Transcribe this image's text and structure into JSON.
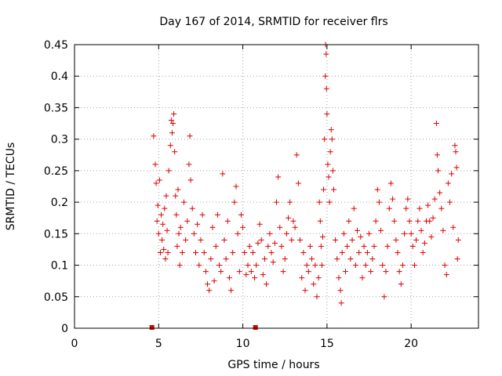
{
  "chart_data": {
    "type": "scatter",
    "title": "Day 167 of 2014, SRMTID for receiver flrs",
    "xlabel": "GPS time / hours",
    "ylabel": "SRMTID / TECUs",
    "xlim": [
      0,
      24
    ],
    "ylim": [
      0,
      0.45
    ],
    "xticks": [
      0,
      5,
      10,
      15,
      20
    ],
    "yticks": [
      0,
      0.05,
      0.1,
      0.15,
      0.2,
      0.25,
      0.3,
      0.35,
      0.4,
      0.45
    ],
    "xtick_labels": [
      "0",
      "5",
      "10",
      "15",
      "20"
    ],
    "ytick_labels": [
      "0",
      "0.05",
      "0.1",
      "0.15",
      "0.2",
      "0.25",
      "0.3",
      "0.35",
      "0.4",
      "0.45"
    ],
    "grid": true,
    "marker": "+",
    "color": "#dd0000",
    "series": [
      {
        "name": "SRMTID",
        "points": [
          [
            4.7,
            0.305
          ],
          [
            4.8,
            0.26
          ],
          [
            4.85,
            0.23
          ],
          [
            4.9,
            0.17
          ],
          [
            4.95,
            0.195
          ],
          [
            5.0,
            0.15
          ],
          [
            5.05,
            0.235
          ],
          [
            5.1,
            0.12
          ],
          [
            5.15,
            0.18
          ],
          [
            5.2,
            0.14
          ],
          [
            5.25,
            0.165
          ],
          [
            5.3,
            0.125
          ],
          [
            5.35,
            0.19
          ],
          [
            5.4,
            0.11
          ],
          [
            5.45,
            0.21
          ],
          [
            5.5,
            0.155
          ],
          [
            5.55,
            0.12
          ],
          [
            5.6,
            0.25
          ],
          [
            5.7,
            0.29
          ],
          [
            5.75,
            0.33
          ],
          [
            5.8,
            0.31
          ],
          [
            5.85,
            0.325
          ],
          [
            5.9,
            0.34
          ],
          [
            5.95,
            0.28
          ],
          [
            6.0,
            0.21
          ],
          [
            6.05,
            0.18
          ],
          [
            6.1,
            0.13
          ],
          [
            6.15,
            0.22
          ],
          [
            6.2,
            0.15
          ],
          [
            6.25,
            0.1
          ],
          [
            6.3,
            0.16
          ],
          [
            6.4,
            0.12
          ],
          [
            6.5,
            0.2
          ],
          [
            6.6,
            0.14
          ],
          [
            6.7,
            0.17
          ],
          [
            6.8,
            0.26
          ],
          [
            6.85,
            0.305
          ],
          [
            6.9,
            0.235
          ],
          [
            7.0,
            0.19
          ],
          [
            7.1,
            0.15
          ],
          [
            7.2,
            0.12
          ],
          [
            7.3,
            0.165
          ],
          [
            7.4,
            0.1
          ],
          [
            7.5,
            0.14
          ],
          [
            7.6,
            0.18
          ],
          [
            7.7,
            0.12
          ],
          [
            7.8,
            0.09
          ],
          [
            7.9,
            0.07
          ],
          [
            8.0,
            0.06
          ],
          [
            8.1,
            0.11
          ],
          [
            8.2,
            0.16
          ],
          [
            8.3,
            0.075
          ],
          [
            8.4,
            0.13
          ],
          [
            8.5,
            0.18
          ],
          [
            8.6,
            0.1
          ],
          [
            8.7,
            0.09
          ],
          [
            8.8,
            0.245
          ],
          [
            8.9,
            0.14
          ],
          [
            9.0,
            0.11
          ],
          [
            9.1,
            0.17
          ],
          [
            9.2,
            0.08
          ],
          [
            9.3,
            0.06
          ],
          [
            9.4,
            0.12
          ],
          [
            9.5,
            0.2
          ],
          [
            9.6,
            0.225
          ],
          [
            9.7,
            0.15
          ],
          [
            9.8,
            0.09
          ],
          [
            9.9,
            0.18
          ],
          [
            10.0,
            0.16
          ],
          [
            10.1,
            0.12
          ],
          [
            10.2,
            0.085
          ],
          [
            10.3,
            0.1
          ],
          [
            10.4,
            0.13
          ],
          [
            10.5,
            0.09
          ],
          [
            10.6,
            0.12
          ],
          [
            10.7,
            0.08
          ],
          [
            10.8,
            0.1
          ],
          [
            10.9,
            0.135
          ],
          [
            11.0,
            0.165
          ],
          [
            11.1,
            0.14
          ],
          [
            11.2,
            0.085
          ],
          [
            11.3,
            0.11
          ],
          [
            11.4,
            0.07
          ],
          [
            11.5,
            0.13
          ],
          [
            11.6,
            0.15
          ],
          [
            11.7,
            0.12
          ],
          [
            11.8,
            0.105
          ],
          [
            11.9,
            0.135
          ],
          [
            12.0,
            0.2
          ],
          [
            12.1,
            0.24
          ],
          [
            12.2,
            0.16
          ],
          [
            12.3,
            0.13
          ],
          [
            12.4,
            0.09
          ],
          [
            12.5,
            0.11
          ],
          [
            12.6,
            0.15
          ],
          [
            12.7,
            0.175
          ],
          [
            12.8,
            0.2
          ],
          [
            12.9,
            0.14
          ],
          [
            13.0,
            0.17
          ],
          [
            13.1,
            0.16
          ],
          [
            13.2,
            0.275
          ],
          [
            13.3,
            0.23
          ],
          [
            13.4,
            0.14
          ],
          [
            13.5,
            0.08
          ],
          [
            13.6,
            0.12
          ],
          [
            13.7,
            0.06
          ],
          [
            13.8,
            0.1
          ],
          [
            13.9,
            0.09
          ],
          [
            14.0,
            0.13
          ],
          [
            14.1,
            0.11
          ],
          [
            14.2,
            0.07
          ],
          [
            14.3,
            0.1
          ],
          [
            14.4,
            0.05
          ],
          [
            14.5,
            0.08
          ],
          [
            14.55,
            0.2
          ],
          [
            14.6,
            0.17
          ],
          [
            14.65,
            0.13
          ],
          [
            14.7,
            0.1
          ],
          [
            14.75,
            0.145
          ],
          [
            14.8,
            0.22
          ],
          [
            14.85,
            0.3
          ],
          [
            14.9,
            0.4
          ],
          [
            14.92,
            0.45
          ],
          [
            14.95,
            0.435
          ],
          [
            14.97,
            0.38
          ],
          [
            15.0,
            0.34
          ],
          [
            15.05,
            0.26
          ],
          [
            15.1,
            0.24
          ],
          [
            15.15,
            0.2
          ],
          [
            15.2,
            0.28
          ],
          [
            15.25,
            0.315
          ],
          [
            15.3,
            0.3
          ],
          [
            15.35,
            0.25
          ],
          [
            15.4,
            0.22
          ],
          [
            15.5,
            0.14
          ],
          [
            15.6,
            0.11
          ],
          [
            15.7,
            0.08
          ],
          [
            15.8,
            0.06
          ],
          [
            15.85,
            0.04
          ],
          [
            15.9,
            0.12
          ],
          [
            16.0,
            0.15
          ],
          [
            16.1,
            0.09
          ],
          [
            16.2,
            0.13
          ],
          [
            16.3,
            0.17
          ],
          [
            16.4,
            0.11
          ],
          [
            16.5,
            0.14
          ],
          [
            16.6,
            0.19
          ],
          [
            16.7,
            0.1
          ],
          [
            16.8,
            0.155
          ],
          [
            16.9,
            0.12
          ],
          [
            17.0,
            0.145
          ],
          [
            17.1,
            0.08
          ],
          [
            17.2,
            0.13
          ],
          [
            17.3,
            0.1
          ],
          [
            17.4,
            0.12
          ],
          [
            17.5,
            0.15
          ],
          [
            17.6,
            0.09
          ],
          [
            17.7,
            0.11
          ],
          [
            17.8,
            0.13
          ],
          [
            17.9,
            0.17
          ],
          [
            18.0,
            0.22
          ],
          [
            18.1,
            0.2
          ],
          [
            18.2,
            0.155
          ],
          [
            18.3,
            0.1
          ],
          [
            18.4,
            0.05
          ],
          [
            18.5,
            0.09
          ],
          [
            18.6,
            0.13
          ],
          [
            18.7,
            0.19
          ],
          [
            18.8,
            0.23
          ],
          [
            18.9,
            0.205
          ],
          [
            19.0,
            0.17
          ],
          [
            19.1,
            0.14
          ],
          [
            19.2,
            0.12
          ],
          [
            19.3,
            0.09
          ],
          [
            19.4,
            0.07
          ],
          [
            19.5,
            0.1
          ],
          [
            19.6,
            0.15
          ],
          [
            19.7,
            0.19
          ],
          [
            19.8,
            0.205
          ],
          [
            19.9,
            0.17
          ],
          [
            20.0,
            0.15
          ],
          [
            20.1,
            0.13
          ],
          [
            20.2,
            0.1
          ],
          [
            20.3,
            0.14
          ],
          [
            20.4,
            0.17
          ],
          [
            20.5,
            0.19
          ],
          [
            20.6,
            0.155
          ],
          [
            20.7,
            0.12
          ],
          [
            20.8,
            0.135
          ],
          [
            20.9,
            0.17
          ],
          [
            21.0,
            0.195
          ],
          [
            21.1,
            0.17
          ],
          [
            21.2,
            0.145
          ],
          [
            21.3,
            0.175
          ],
          [
            21.4,
            0.205
          ],
          [
            21.5,
            0.325
          ],
          [
            21.55,
            0.275
          ],
          [
            21.6,
            0.25
          ],
          [
            21.7,
            0.215
          ],
          [
            21.8,
            0.19
          ],
          [
            21.9,
            0.155
          ],
          [
            22.0,
            0.1
          ],
          [
            22.1,
            0.085
          ],
          [
            22.2,
            0.23
          ],
          [
            22.3,
            0.2
          ],
          [
            22.4,
            0.245
          ],
          [
            22.5,
            0.16
          ],
          [
            22.6,
            0.29
          ],
          [
            22.65,
            0.28
          ],
          [
            22.7,
            0.255
          ],
          [
            22.75,
            0.11
          ],
          [
            22.8,
            0.14
          ]
        ]
      },
      {
        "name": "zero markers",
        "points": [
          [
            4.6,
            0.0
          ],
          [
            10.75,
            0.0
          ]
        ]
      }
    ]
  }
}
